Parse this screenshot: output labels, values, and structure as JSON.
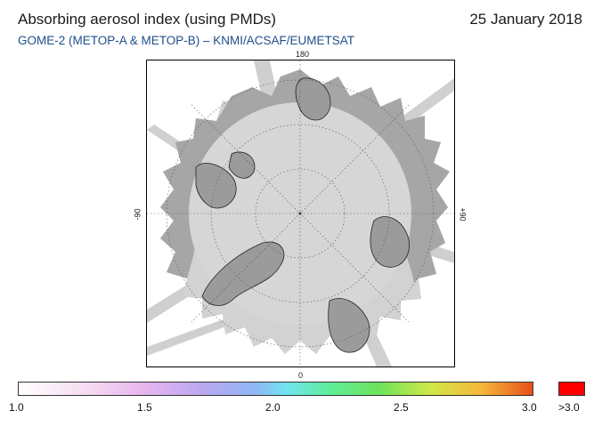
{
  "header": {
    "title": "Absorbing aerosol index (using PMDs)",
    "date": "25 January 2018",
    "subtitle": "GOME-2 (METOP-A & METOP-B)  –  KNMI/ACSAF/EUMETSAT"
  },
  "map": {
    "projection": "north polar stereographic",
    "longitude_labels": {
      "top": "180",
      "bottom": "0",
      "left": "-90",
      "right": "+90"
    },
    "colors": {
      "ocean_no_data": "#ffffff",
      "land_fill": "#9a9a9a",
      "data_coverage": "#d0d0d0",
      "polar_night": "#a8a8a8",
      "orbit_gap": "#bdbdbd"
    }
  },
  "colorbar": {
    "tick_labels": [
      "1.0",
      "1.5",
      "2.0",
      "2.5",
      "3.0"
    ],
    "overflow_label": ">3.0",
    "overflow_color": "#ff0000"
  }
}
